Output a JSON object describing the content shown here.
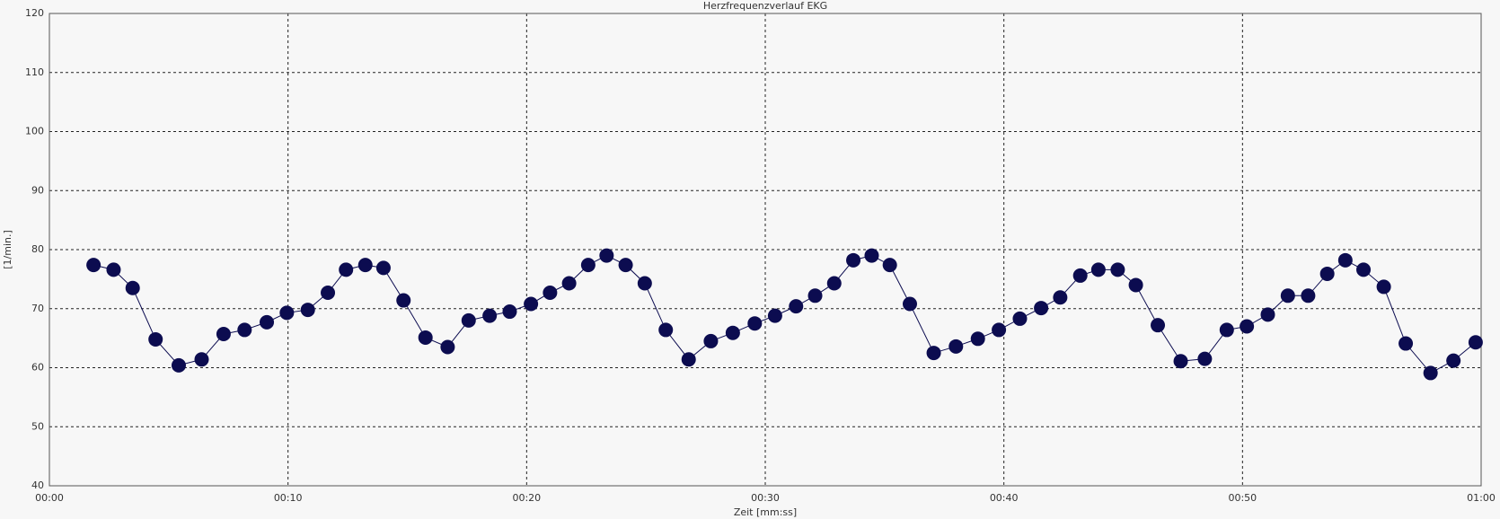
{
  "chart_data": {
    "type": "line",
    "title": "Herzfrequenzverlauf EKG",
    "x_label": "Zeit [mm:ss]",
    "y_label": "[1/min.]",
    "x": [
      1.85,
      2.69,
      3.49,
      4.45,
      5.42,
      6.38,
      7.3,
      8.18,
      9.11,
      9.95,
      10.83,
      11.67,
      12.43,
      13.24,
      14.0,
      14.84,
      15.76,
      16.69,
      17.57,
      18.45,
      19.29,
      20.18,
      20.98,
      21.78,
      22.58,
      23.35,
      24.15,
      24.95,
      25.83,
      26.79,
      27.72,
      28.64,
      29.56,
      30.41,
      31.29,
      32.09,
      32.89,
      33.69,
      34.46,
      35.22,
      36.06,
      37.06,
      37.99,
      38.91,
      39.79,
      40.67,
      41.56,
      42.36,
      43.2,
      43.96,
      44.77,
      45.53,
      46.45,
      47.41,
      48.42,
      49.34,
      50.18,
      51.06,
      51.9,
      52.75,
      53.55,
      54.31,
      55.07,
      55.92,
      56.84,
      57.88,
      58.84,
      59.77
    ],
    "series": [
      {
        "color": "#0c0c50",
        "values": [
          77.4,
          76.6,
          73.5,
          64.8,
          60.4,
          61.4,
          65.7,
          66.4,
          67.7,
          69.3,
          69.8,
          72.7,
          76.6,
          77.4,
          76.9,
          71.4,
          65.1,
          63.5,
          68.0,
          68.8,
          69.5,
          70.8,
          72.7,
          74.3,
          77.4,
          79.0,
          77.4,
          74.3,
          66.4,
          61.4,
          64.5,
          65.9,
          67.5,
          68.8,
          70.4,
          72.2,
          74.3,
          78.2,
          79.0,
          77.4,
          70.8,
          62.5,
          63.6,
          64.9,
          66.4,
          68.3,
          70.1,
          71.9,
          75.6,
          76.6,
          76.6,
          74.0,
          67.2,
          61.1,
          61.5,
          66.4,
          67.0,
          69.0,
          72.2,
          72.2,
          75.9,
          78.2,
          76.6,
          73.7,
          64.1,
          59.1,
          61.2,
          64.3
        ]
      }
    ],
    "xlim": [
      0,
      60
    ],
    "xticks": [
      {
        "value": 0,
        "label": "00:00"
      },
      {
        "value": 10,
        "label": "00:10"
      },
      {
        "value": 20,
        "label": "00:20"
      },
      {
        "value": 30,
        "label": "00:30"
      },
      {
        "value": 40,
        "label": "00:40"
      },
      {
        "value": 50,
        "label": "00:50"
      },
      {
        "value": 60,
        "label": "01:00"
      }
    ],
    "ylim": [
      40,
      120
    ],
    "yticks": [
      40,
      50,
      60,
      70,
      80,
      90,
      100,
      110,
      120
    ],
    "grid": true
  }
}
